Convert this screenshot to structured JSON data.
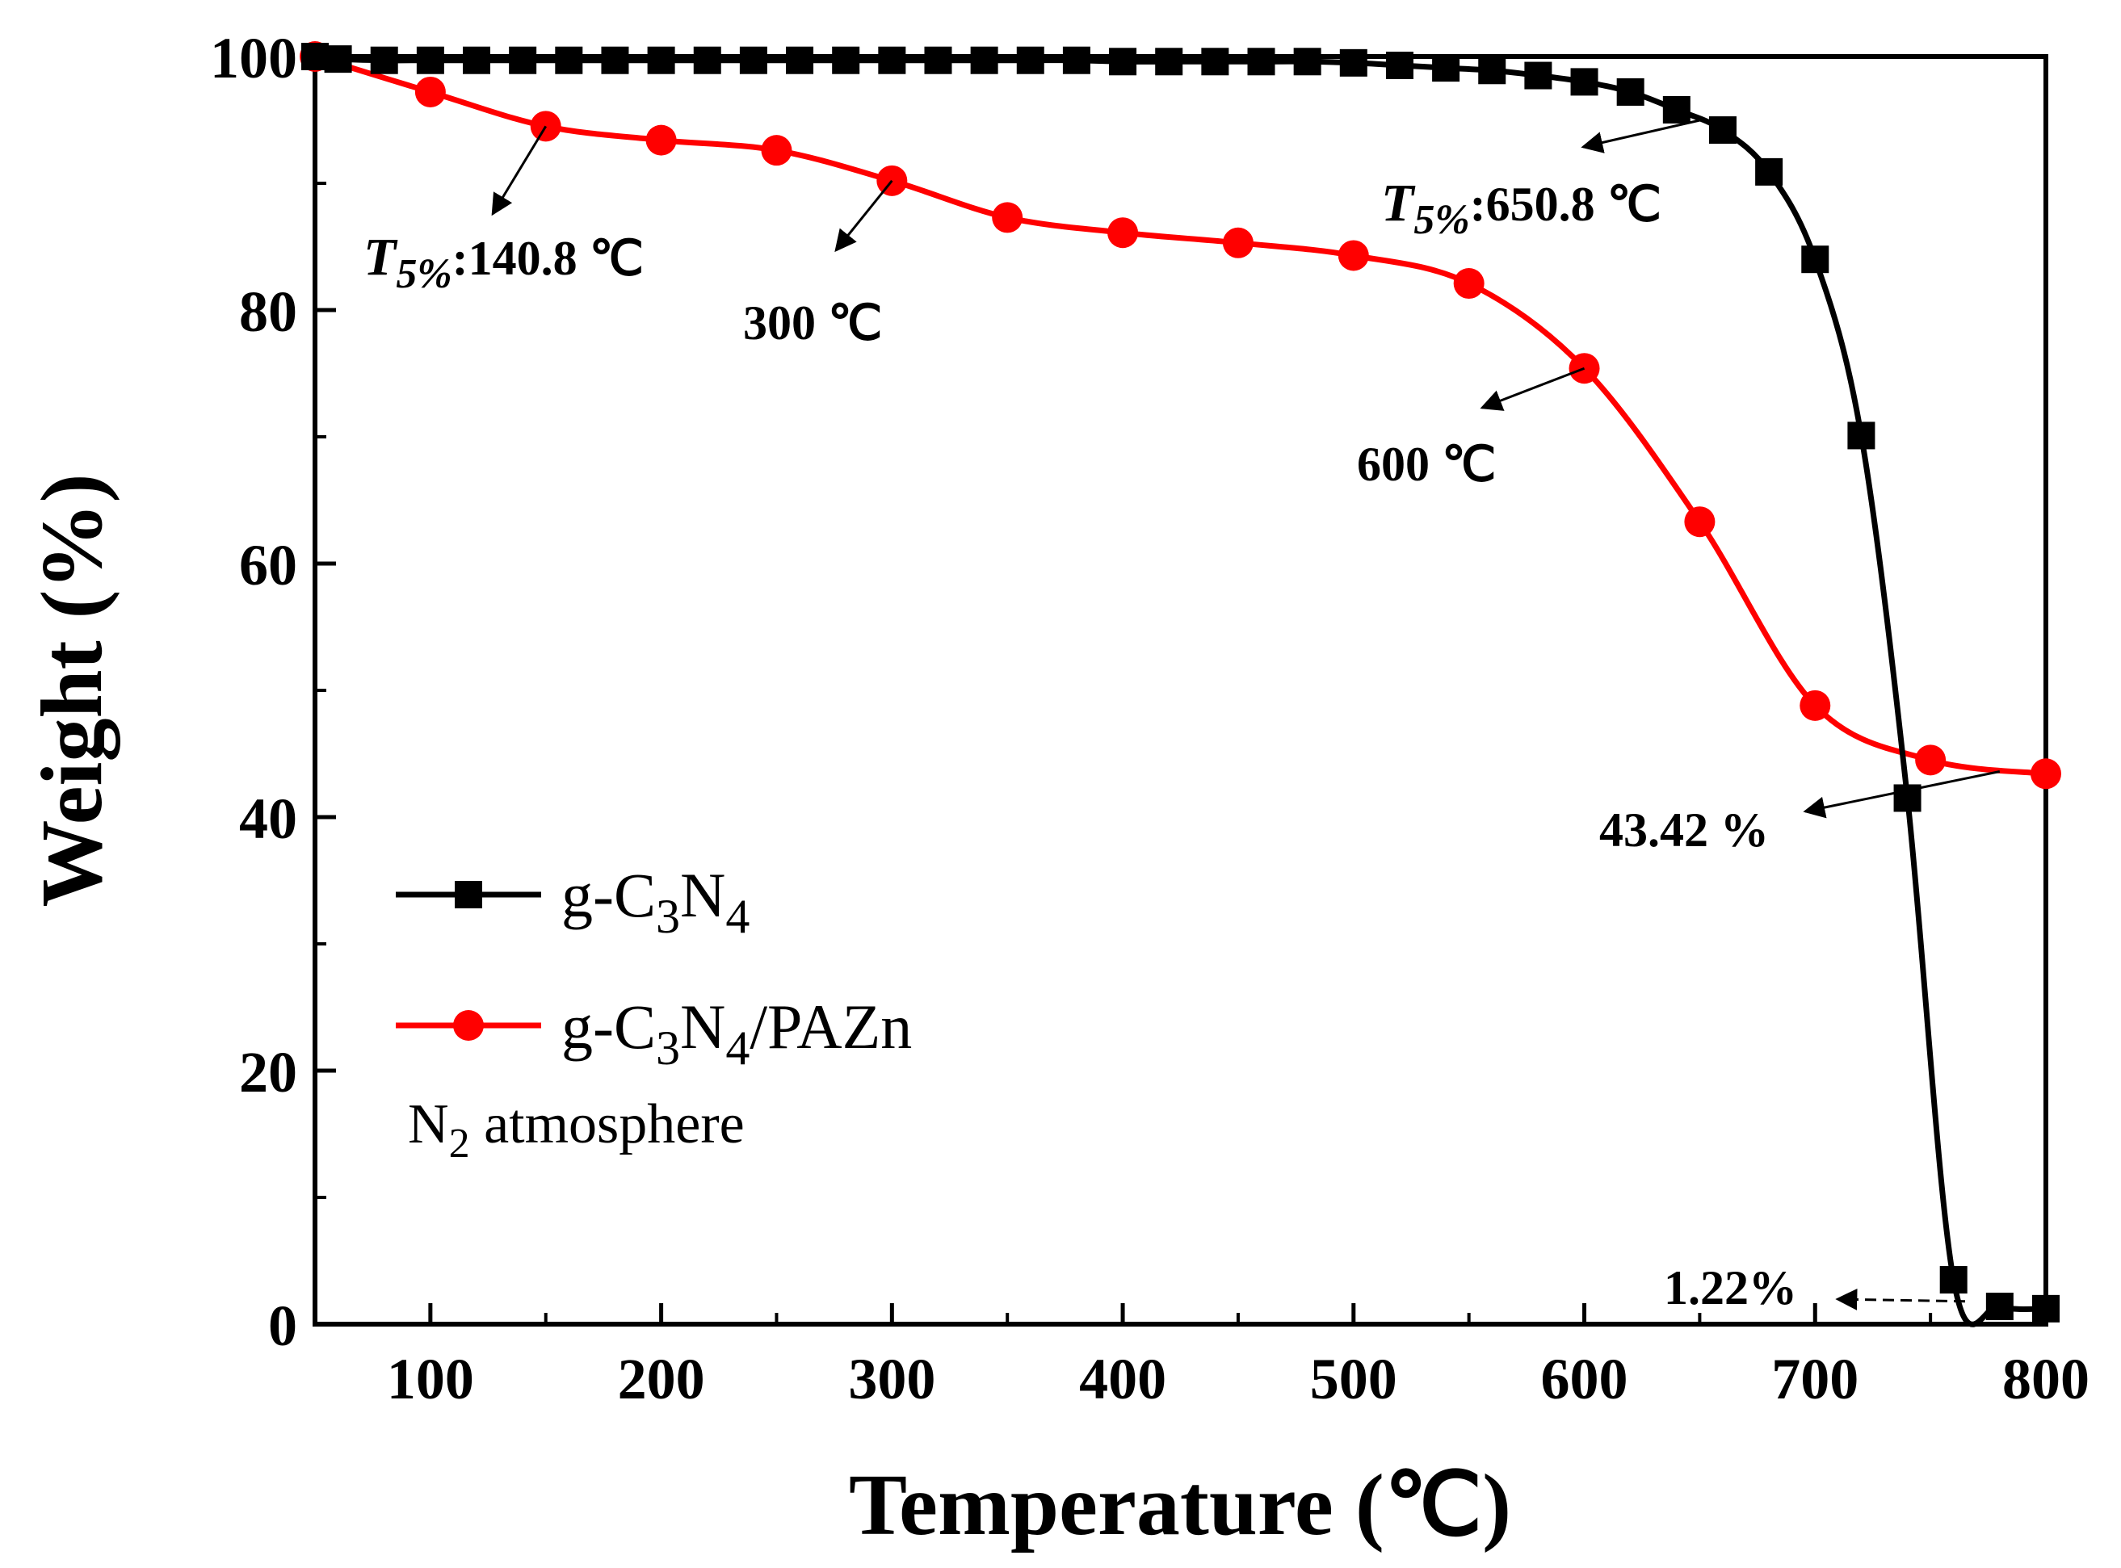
{
  "chart_data": {
    "type": "line",
    "title": "",
    "xlabel": "Temperature (℃)",
    "ylabel": "Weight (%)",
    "xlim": [
      50,
      800
    ],
    "ylim": [
      0,
      100
    ],
    "xticks": [
      100,
      200,
      300,
      400,
      500,
      600,
      700,
      800
    ],
    "yticks": [
      0,
      20,
      40,
      60,
      80,
      100
    ],
    "grid": false,
    "legend_position": "center-left",
    "series": [
      {
        "name": "g-C3N4",
        "legend_base": "g-C",
        "legend_sub1": "3",
        "legend_mid": "N",
        "legend_sub2": "4",
        "legend_suffix": "",
        "color": "#000000",
        "marker": "square",
        "x": [
          50,
          60,
          80,
          100,
          120,
          140,
          160,
          180,
          200,
          220,
          240,
          260,
          280,
          300,
          320,
          340,
          360,
          380,
          400,
          420,
          440,
          460,
          480,
          500,
          520,
          540,
          560,
          580,
          600,
          620,
          640,
          660,
          680,
          700,
          720,
          740,
          760,
          780,
          800
        ],
        "y": [
          100,
          99.8,
          99.7,
          99.7,
          99.7,
          99.7,
          99.7,
          99.7,
          99.7,
          99.7,
          99.7,
          99.7,
          99.7,
          99.7,
          99.7,
          99.7,
          99.7,
          99.7,
          99.6,
          99.6,
          99.6,
          99.6,
          99.6,
          99.5,
          99.3,
          99.1,
          98.9,
          98.5,
          98.0,
          97.2,
          95.8,
          94.2,
          90.9,
          84.0,
          70.1,
          41.5,
          3.5,
          1.4,
          1.22
        ]
      },
      {
        "name": "g-C3N4/PAZn",
        "legend_base": "g-C",
        "legend_sub1": "3",
        "legend_mid": "N",
        "legend_sub2": "4",
        "legend_suffix": "/PAZn",
        "color": "#ff0000",
        "marker": "circle",
        "x": [
          50,
          100,
          150,
          200,
          250,
          300,
          350,
          400,
          450,
          500,
          550,
          600,
          650,
          700,
          750,
          800
        ],
        "y": [
          100,
          97.2,
          94.5,
          93.4,
          92.6,
          90.2,
          87.3,
          86.1,
          85.3,
          84.3,
          82.1,
          75.4,
          63.3,
          48.8,
          44.5,
          43.42
        ]
      }
    ],
    "annotations": [
      {
        "id": "t5-red",
        "italic": "T",
        "italic_sub": "5%",
        "text": ":140.8 ℃",
        "target": [
          150,
          94.5
        ]
      },
      {
        "id": "red-300",
        "text": "300 ℃",
        "target": [
          300,
          90.2
        ]
      },
      {
        "id": "red-600",
        "text": "600 ℃",
        "target": [
          600,
          75.4
        ]
      },
      {
        "id": "t5-black",
        "italic": "T",
        "italic_sub": "5%",
        "text": ":650.8 ℃",
        "target": [
          650.8,
          95
        ]
      },
      {
        "id": "red-residue",
        "text": "43.42 %",
        "target": [
          780,
          43.6
        ]
      },
      {
        "id": "black-residue",
        "text": "1.22%",
        "target": [
          765,
          1.8
        ]
      }
    ],
    "condition_note": {
      "base": "N",
      "sub": "2",
      "rest": " atmosphere"
    }
  }
}
